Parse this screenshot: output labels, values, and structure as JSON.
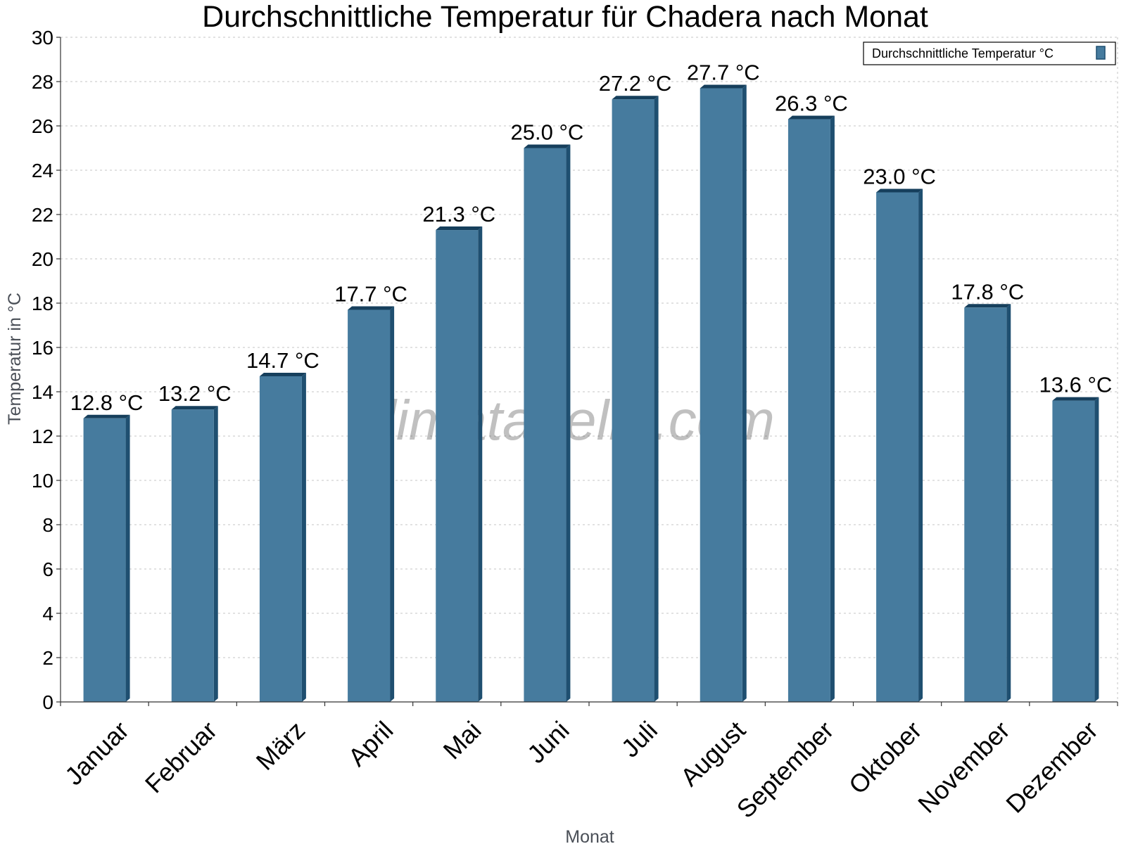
{
  "colors": {
    "bar_front": "#467b9e",
    "bar_side": "#1f4f70",
    "bar_top": "#163f5c",
    "background": "#ffffff"
  },
  "watermark": "klimatabelle.com",
  "chart_data": {
    "type": "bar",
    "title": "Durchschnittliche Temperatur für Chadera nach Monat",
    "xlabel": "Monat",
    "ylabel": "Temperatur in °C",
    "ylim": [
      0,
      30
    ],
    "y_ticks": [
      "0",
      "2",
      "4",
      "6",
      "8",
      "10",
      "12",
      "14",
      "16",
      "18",
      "20",
      "22",
      "24",
      "26",
      "28",
      "30"
    ],
    "grid": true,
    "legend_position": "top-right",
    "categories": [
      "Januar",
      "Februar",
      "März",
      "April",
      "Mai",
      "Juni",
      "Juli",
      "August",
      "September",
      "Oktober",
      "November",
      "Dezember"
    ],
    "series": [
      {
        "name": "Durchschnittliche Temperatur °C",
        "values": [
          12.8,
          13.2,
          14.7,
          17.7,
          21.3,
          25.0,
          27.2,
          27.7,
          26.3,
          23.0,
          17.8,
          13.6
        ],
        "labels": [
          "12.8 °C",
          "13.2 °C",
          "14.7 °C",
          "17.7 °C",
          "21.3 °C",
          "25.0 °C",
          "27.2 °C",
          "27.7 °C",
          "26.3 °C",
          "23.0 °C",
          "17.8 °C",
          "13.6 °C"
        ]
      }
    ]
  }
}
